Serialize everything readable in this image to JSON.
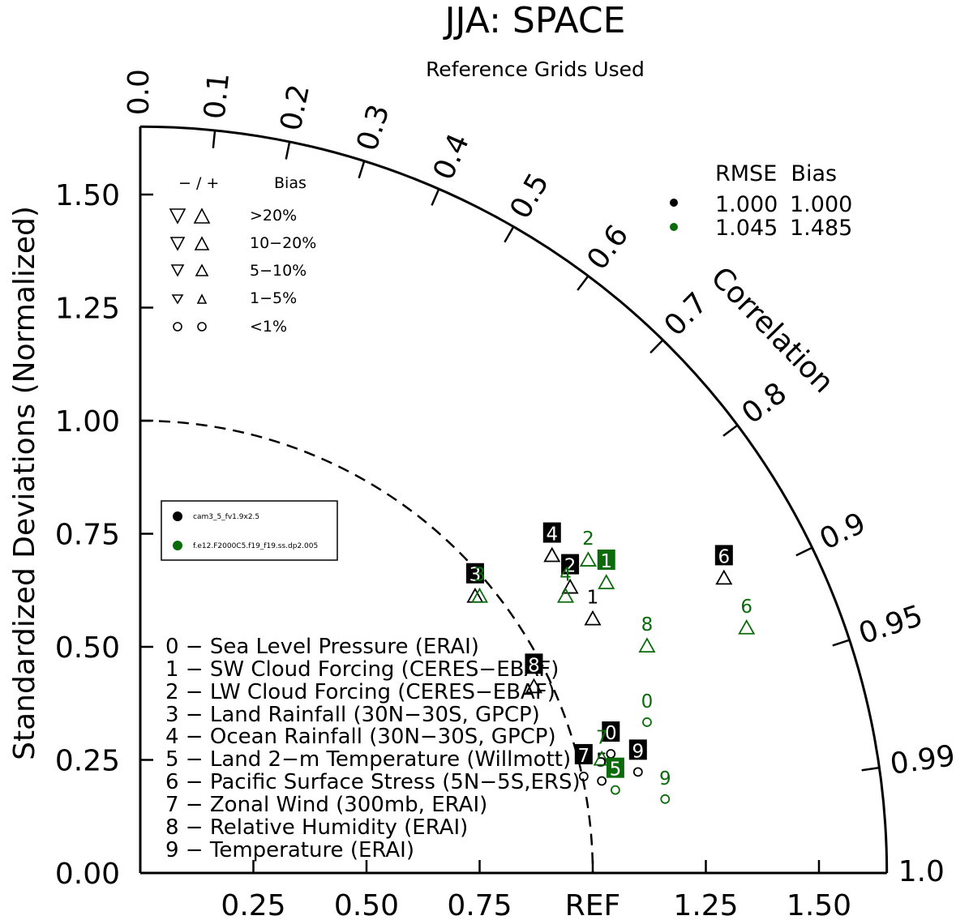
{
  "title": "JJA: SPACE",
  "subtitle": "Reference Grids Used",
  "y_axis_label": "Standardized Deviations (Normalized)",
  "x_ticks": [
    "0.25",
    "0.50",
    "0.75",
    "REF",
    "1.25",
    "1.50"
  ],
  "y_ticks": [
    "0.00",
    "0.25",
    "0.50",
    "0.75",
    "1.00",
    "1.25",
    "1.50"
  ],
  "corr_label": "Correlation",
  "corr_ticks": [
    "0.0",
    "0.1",
    "0.2",
    "0.3",
    "0.4",
    "0.5",
    "0.6",
    "0.7",
    "0.8",
    "0.9",
    "0.95",
    "0.99",
    "1.0"
  ],
  "bias_legend": {
    "header": [
      "− / +",
      "Bias"
    ],
    "rows": [
      ">20%",
      "10−20%",
      "5−10%",
      "1−5%",
      "<1%"
    ]
  },
  "stats_legend": {
    "header": "RMSE  Bias",
    "rows": [
      {
        "rmse": "1.000",
        "bias": "1.000",
        "color": "#000000"
      },
      {
        "rmse": "1.045",
        "bias": "1.485",
        "color": "#0b6b0b"
      }
    ]
  },
  "models": [
    {
      "name": "cam3_5_fv1.9x2.5",
      "color": "#000000"
    },
    {
      "name": "f.e12.F2000C5.f19_f19.ss.dp2.005",
      "color": "#0b6b0b"
    }
  ],
  "case_labels": [
    "0 − Sea Level Pressure (ERAI)",
    "1 − SW Cloud Forcing (CERES−EBAF)",
    "2 − LW Cloud Forcing (CERES−EBAF)",
    "3 − Land Rainfall (30N−30S, GPCP)",
    "4 − Ocean Rainfall (30N−30S, GPCP)",
    "5 − Land 2−m Temperature (Willmott)",
    "6 − Pacific Surface Stress (5N−5S,ERS)",
    "7 − Zonal Wind (300mb, ERAI)",
    "8 − Relative Humidity (ERAI)",
    "9 − Temperature (ERAI)"
  ],
  "chart_data": {
    "type": "scatter",
    "title": "JJA: SPACE",
    "subtitle": "Reference Grids Used",
    "ylabel": "Standardized Deviations (Normalized)",
    "xlim": [
      0,
      1.65
    ],
    "ylim": [
      0,
      1.65
    ],
    "series": [
      {
        "name": "cam3_5_fv1.9x2.5",
        "color": "#000000",
        "points": [
          {
            "id": "0",
            "x": 1.04,
            "y": 0.31,
            "boxed": true,
            "marker": "circle"
          },
          {
            "id": "1",
            "x": 1.0,
            "y": 0.61,
            "boxed": false,
            "marker": "up"
          },
          {
            "id": "2",
            "x": 0.95,
            "y": 0.68,
            "boxed": true,
            "marker": "up"
          },
          {
            "id": "3",
            "x": 0.74,
            "y": 0.66,
            "boxed": true,
            "marker": "up"
          },
          {
            "id": "4",
            "x": 0.91,
            "y": 0.75,
            "boxed": true,
            "marker": "up"
          },
          {
            "id": "5",
            "x": 1.02,
            "y": 0.25,
            "boxed": false,
            "marker": "circle"
          },
          {
            "id": "6",
            "x": 1.29,
            "y": 0.7,
            "boxed": true,
            "marker": "up"
          },
          {
            "id": "7",
            "x": 0.98,
            "y": 0.26,
            "boxed": true,
            "marker": "circle"
          },
          {
            "id": "8",
            "x": 0.87,
            "y": 0.46,
            "boxed": true,
            "marker": "up"
          },
          {
            "id": "9",
            "x": 1.1,
            "y": 0.27,
            "boxed": true,
            "marker": "circle"
          }
        ]
      },
      {
        "name": "f.e12.F2000C5.f19_f19.ss.dp2.005",
        "color": "#0b6b0b",
        "points": [
          {
            "id": "0",
            "x": 1.12,
            "y": 0.38,
            "boxed": false,
            "marker": "circle"
          },
          {
            "id": "1",
            "x": 1.03,
            "y": 0.69,
            "boxed": true,
            "marker": "up"
          },
          {
            "id": "2",
            "x": 0.99,
            "y": 0.74,
            "boxed": false,
            "marker": "up"
          },
          {
            "id": "3",
            "x": 0.75,
            "y": 0.66,
            "boxed": false,
            "marker": "up"
          },
          {
            "id": "4",
            "x": 0.94,
            "y": 0.66,
            "boxed": false,
            "marker": "up"
          },
          {
            "id": "5",
            "x": 1.05,
            "y": 0.23,
            "boxed": true,
            "marker": "circle"
          },
          {
            "id": "6",
            "x": 1.34,
            "y": 0.59,
            "boxed": false,
            "marker": "up"
          },
          {
            "id": "7",
            "x": 1.02,
            "y": 0.3,
            "boxed": false,
            "marker": "up"
          },
          {
            "id": "8",
            "x": 1.12,
            "y": 0.55,
            "boxed": false,
            "marker": "up"
          },
          {
            "id": "9",
            "x": 1.16,
            "y": 0.21,
            "boxed": false,
            "marker": "circle"
          }
        ]
      }
    ]
  }
}
